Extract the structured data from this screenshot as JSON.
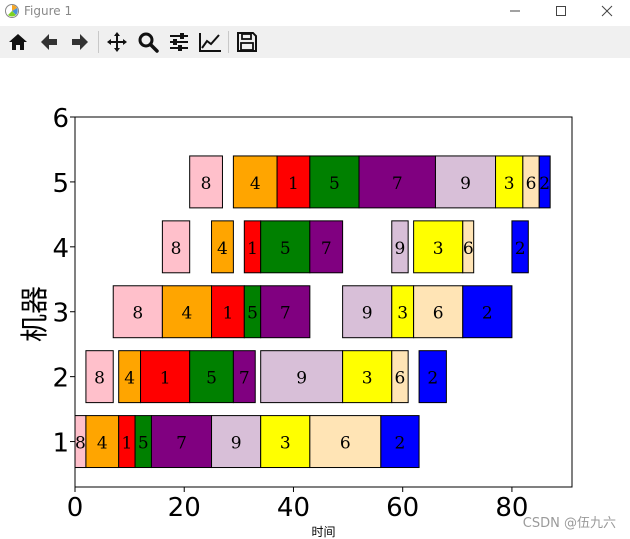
{
  "window": {
    "title": "Figure 1",
    "controls": [
      "minimize",
      "maximize",
      "close"
    ]
  },
  "toolbar": {
    "buttons": [
      "home-icon",
      "back-icon",
      "forward-icon",
      "pan-icon",
      "zoom-icon",
      "configure-subplots-icon",
      "edit-axis-icon",
      "save-icon"
    ]
  },
  "watermark": "CSDN @伍九六",
  "colors": {
    "1": "#ff0000",
    "2": "#0000ff",
    "3": "#ffff00",
    "4": "#ffa500",
    "5": "#008000",
    "6": "#ffe4b5",
    "7": "#800080",
    "8": "#ffc0cb",
    "9": "#d8bfd8"
  },
  "chart_data": {
    "type": "gantt",
    "xlabel": "时间",
    "ylabel": "机器",
    "xlim": [
      0,
      91
    ],
    "ylim": [
      0.3,
      6
    ],
    "xticks": [
      0,
      20,
      40,
      60,
      80
    ],
    "yticks": [
      1,
      2,
      3,
      4,
      5,
      6
    ],
    "machines": [
      {
        "machine": 1,
        "tasks": [
          {
            "job": "8",
            "start": 0,
            "end": 2
          },
          {
            "job": "4",
            "start": 2,
            "end": 8
          },
          {
            "job": "1",
            "start": 8,
            "end": 11
          },
          {
            "job": "5",
            "start": 11,
            "end": 14
          },
          {
            "job": "7",
            "start": 14,
            "end": 25
          },
          {
            "job": "9",
            "start": 25,
            "end": 34
          },
          {
            "job": "3",
            "start": 34,
            "end": 43
          },
          {
            "job": "6",
            "start": 43,
            "end": 56
          },
          {
            "job": "2",
            "start": 56,
            "end": 63
          }
        ]
      },
      {
        "machine": 2,
        "tasks": [
          {
            "job": "8",
            "start": 2,
            "end": 7
          },
          {
            "job": "4",
            "start": 8,
            "end": 12
          },
          {
            "job": "1",
            "start": 12,
            "end": 21
          },
          {
            "job": "5",
            "start": 21,
            "end": 29
          },
          {
            "job": "7",
            "start": 29,
            "end": 33
          },
          {
            "job": "9",
            "start": 34,
            "end": 49
          },
          {
            "job": "3",
            "start": 49,
            "end": 58
          },
          {
            "job": "6",
            "start": 58,
            "end": 61
          },
          {
            "job": "2",
            "start": 63,
            "end": 68
          }
        ]
      },
      {
        "machine": 3,
        "tasks": [
          {
            "job": "8",
            "start": 7,
            "end": 16
          },
          {
            "job": "4",
            "start": 16,
            "end": 25
          },
          {
            "job": "1",
            "start": 25,
            "end": 31
          },
          {
            "job": "5",
            "start": 31,
            "end": 34
          },
          {
            "job": "7",
            "start": 34,
            "end": 43
          },
          {
            "job": "9",
            "start": 49,
            "end": 58
          },
          {
            "job": "3",
            "start": 58,
            "end": 62
          },
          {
            "job": "6",
            "start": 62,
            "end": 71
          },
          {
            "job": "2",
            "start": 71,
            "end": 80
          }
        ]
      },
      {
        "machine": 4,
        "tasks": [
          {
            "job": "8",
            "start": 16,
            "end": 21
          },
          {
            "job": "4",
            "start": 25,
            "end": 29
          },
          {
            "job": "1",
            "start": 31,
            "end": 34
          },
          {
            "job": "5",
            "start": 34,
            "end": 43
          },
          {
            "job": "7",
            "start": 43,
            "end": 49
          },
          {
            "job": "9",
            "start": 58,
            "end": 61
          },
          {
            "job": "3",
            "start": 62,
            "end": 71
          },
          {
            "job": "6",
            "start": 71,
            "end": 73
          },
          {
            "job": "2",
            "start": 80,
            "end": 83
          }
        ]
      },
      {
        "machine": 5,
        "tasks": [
          {
            "job": "8",
            "start": 21,
            "end": 27
          },
          {
            "job": "4",
            "start": 29,
            "end": 37
          },
          {
            "job": "1",
            "start": 37,
            "end": 43
          },
          {
            "job": "5",
            "start": 43,
            "end": 52
          },
          {
            "job": "7",
            "start": 52,
            "end": 66
          },
          {
            "job": "9",
            "start": 66,
            "end": 77
          },
          {
            "job": "3",
            "start": 77,
            "end": 82
          },
          {
            "job": "6",
            "start": 82,
            "end": 85
          },
          {
            "job": "2",
            "start": 85,
            "end": 87
          }
        ]
      }
    ]
  }
}
